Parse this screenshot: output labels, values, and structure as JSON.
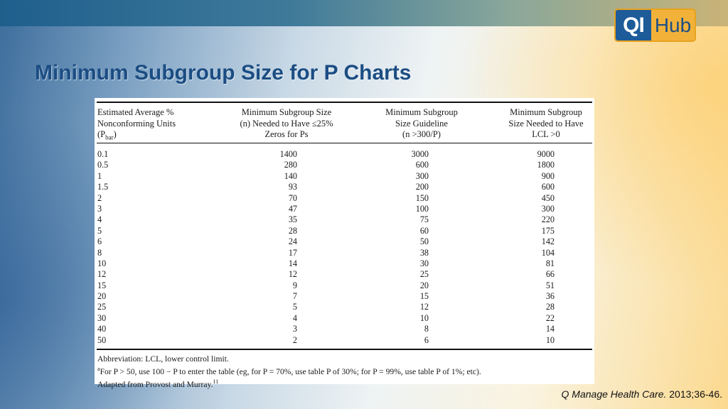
{
  "brand": {
    "logo_left": "QI",
    "logo_right": "Hub"
  },
  "slide_title": "Minimum Subgroup Size for P Charts",
  "table": {
    "headers": [
      [
        "Estimated Average %",
        "Nonconforming Units",
        "(P",
        "bar",
        ")"
      ],
      [
        "Minimum Subgroup Size",
        "(n) Needed to Have ≤25%",
        "Zeros for Ps"
      ],
      [
        "Minimum Subgroup",
        "Size Guideline",
        "(n >300/P)"
      ],
      [
        "Minimum Subgroup",
        "Size Needed to Have",
        "LCL >0"
      ]
    ],
    "rows": [
      [
        "0.1",
        "1400",
        "3000",
        "9000"
      ],
      [
        "0.5",
        "280",
        "600",
        "1800"
      ],
      [
        "1",
        "140",
        "300",
        "900"
      ],
      [
        "1.5",
        "93",
        "200",
        "600"
      ],
      [
        "2",
        "70",
        "150",
        "450"
      ],
      [
        "3",
        "47",
        "100",
        "300"
      ],
      [
        "4",
        "35",
        "75",
        "220"
      ],
      [
        "5",
        "28",
        "60",
        "175"
      ],
      [
        "6",
        "24",
        "50",
        "142"
      ],
      [
        "8",
        "17",
        "38",
        "104"
      ],
      [
        "10",
        "14",
        "30",
        "81"
      ],
      [
        "12",
        "12",
        "25",
        "66"
      ],
      [
        "15",
        "9",
        "20",
        "51"
      ],
      [
        "20",
        "7",
        "15",
        "36"
      ],
      [
        "25",
        "5",
        "12",
        "28"
      ],
      [
        "30",
        "4",
        "10",
        "22"
      ],
      [
        "40",
        "3",
        "8",
        "14"
      ],
      [
        "50",
        "2",
        "6",
        "10"
      ]
    ],
    "notes": {
      "abbreviation": "Abbreviation: LCL, lower control limit.",
      "footnote_mark": "a",
      "footnote": "For P > 50, use 100 − P to enter the table (eg, for P = 70%, use table P of 30%; for P = 99%, use table P of 1%; etc).",
      "adapted": "Adapted from Provost and Murray.",
      "adapted_ref": "11"
    }
  },
  "citation": {
    "journal": "Q Manage Health Care.",
    "details": " 2013;36-46."
  }
}
